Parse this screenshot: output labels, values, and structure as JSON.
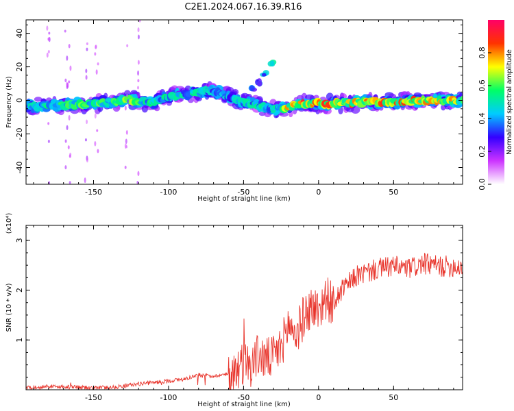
{
  "title": "C2E1.2024.067.16.39.R16",
  "chart_data": [
    {
      "type": "heatmap",
      "xlabel": "Height of straight line (km)",
      "ylabel": "Frequency (Hz)",
      "xlim": [
        -195,
        96
      ],
      "ylim": [
        -50,
        48
      ],
      "x_ticks": [
        -150,
        -100,
        -50,
        0,
        50
      ],
      "y_ticks": [
        -40,
        -20,
        0,
        20,
        40
      ],
      "colorbar": {
        "label": "Normalized spectral amplitude",
        "range": [
          0,
          1
        ],
        "ticks": [
          0.0,
          0.2,
          0.4,
          0.6,
          0.8
        ],
        "colors": [
          "#ffffff",
          "#cc33ff",
          "#3300ff",
          "#00ccff",
          "#00ff66",
          "#ffff00",
          "#ff3300",
          "#ff0066"
        ]
      },
      "ridge": [
        {
          "x": -195,
          "y": -4,
          "amp": 0.45
        },
        {
          "x": -175,
          "y": -3,
          "amp": 0.55
        },
        {
          "x": -150,
          "y": -2,
          "amp": 0.6
        },
        {
          "x": -130,
          "y": 0,
          "amp": 0.65
        },
        {
          "x": -110,
          "y": -1,
          "amp": 0.55
        },
        {
          "x": -95,
          "y": 3,
          "amp": 0.5
        },
        {
          "x": -80,
          "y": 5,
          "amp": 0.5
        },
        {
          "x": -70,
          "y": 6,
          "amp": 0.45
        },
        {
          "x": -60,
          "y": 2,
          "amp": 0.45
        },
        {
          "x": -50,
          "y": -1,
          "amp": 0.5
        },
        {
          "x": -40,
          "y": -3,
          "amp": 0.5
        },
        {
          "x": -30,
          "y": -5,
          "amp": 0.5
        },
        {
          "x": -20,
          "y": -4,
          "amp": 0.75
        },
        {
          "x": -10,
          "y": -2,
          "amp": 0.85
        },
        {
          "x": 10,
          "y": -2,
          "amp": 0.8
        },
        {
          "x": 30,
          "y": -1,
          "amp": 0.85
        },
        {
          "x": 50,
          "y": -1,
          "amp": 0.8
        },
        {
          "x": 70,
          "y": 0,
          "amp": 0.8
        },
        {
          "x": 96,
          "y": 0,
          "amp": 0.75
        }
      ],
      "branch": [
        {
          "x": -44,
          "y": 7,
          "amp": 0.4
        },
        {
          "x": -40,
          "y": 11,
          "amp": 0.45
        },
        {
          "x": -36,
          "y": 16,
          "amp": 0.5
        },
        {
          "x": -31,
          "y": 22,
          "amp": 0.55
        }
      ]
    },
    {
      "type": "line",
      "xlabel": "Height of straight line (km)",
      "ylabel": "SNR (10 * v/v)",
      "y_scale_label": "(x10⁴)",
      "xlim": [
        -195,
        96
      ],
      "ylim": [
        0,
        3.3
      ],
      "x_ticks": [
        -150,
        -100,
        -50,
        0,
        50
      ],
      "y_ticks": [
        1,
        2,
        3
      ],
      "series": [
        {
          "color": "#e8332a",
          "x": [
            -195,
            -180,
            -165,
            -150,
            -135,
            -120,
            -110,
            -100,
            -90,
            -80,
            -70,
            -60,
            -50,
            -45,
            -40,
            -35,
            -30,
            -25,
            -20,
            -15,
            -10,
            -5,
            0,
            5,
            10,
            15,
            20,
            25,
            30,
            40,
            50,
            60,
            70,
            80,
            90,
            96
          ],
          "y": [
            0.05,
            0.07,
            0.06,
            0.04,
            0.06,
            0.12,
            0.15,
            0.18,
            0.22,
            0.3,
            0.28,
            0.32,
            0.6,
            0.55,
            0.75,
            0.65,
            0.7,
            0.9,
            1.35,
            1.15,
            1.5,
            1.7,
            1.65,
            1.9,
            1.75,
            2.0,
            2.15,
            2.3,
            2.35,
            2.45,
            2.5,
            2.45,
            2.55,
            2.5,
            2.5,
            2.5
          ]
        }
      ]
    }
  ]
}
